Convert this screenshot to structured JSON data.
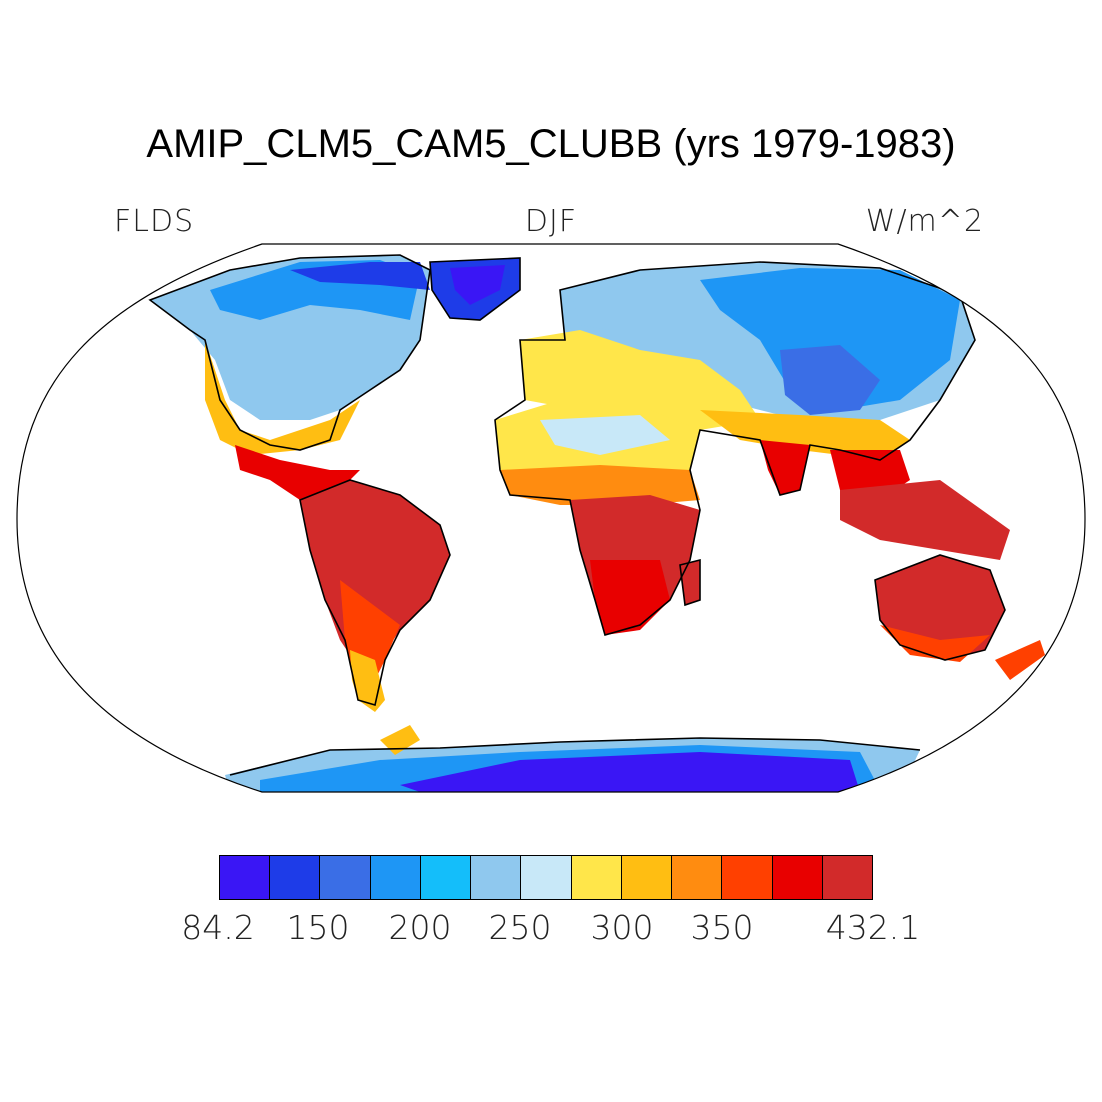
{
  "title": "AMIP_CLM5_CAM5_CLUBB (yrs 1979-1983)",
  "left_label": "FLDS",
  "center_label": "DJF",
  "right_label": "W/m^2",
  "colorbar": {
    "colors": [
      "#3a16f5",
      "#1e3ce8",
      "#3a6ee6",
      "#1e96f5",
      "#14befa",
      "#8fc8ee",
      "#c8e8f8",
      "#ffe64a",
      "#ffbe12",
      "#ff8c10",
      "#ff4000",
      "#e80000",
      "#d22a2a"
    ],
    "tick_labels": [
      "84.2",
      "150",
      "200",
      "250",
      "300",
      "350",
      "432.1"
    ]
  }
}
